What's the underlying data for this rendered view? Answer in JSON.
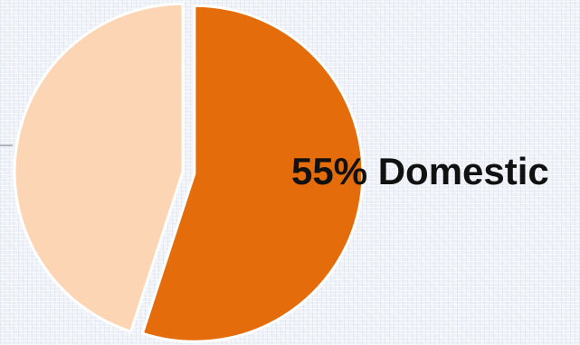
{
  "chart_data": {
    "type": "pie",
    "slices": [
      {
        "value": 55,
        "color": "#e46c0a",
        "label": "55% Domestic"
      },
      {
        "value": 45,
        "color": "#fcd5b5",
        "label": ""
      }
    ],
    "title": "",
    "legend": "none"
  }
}
